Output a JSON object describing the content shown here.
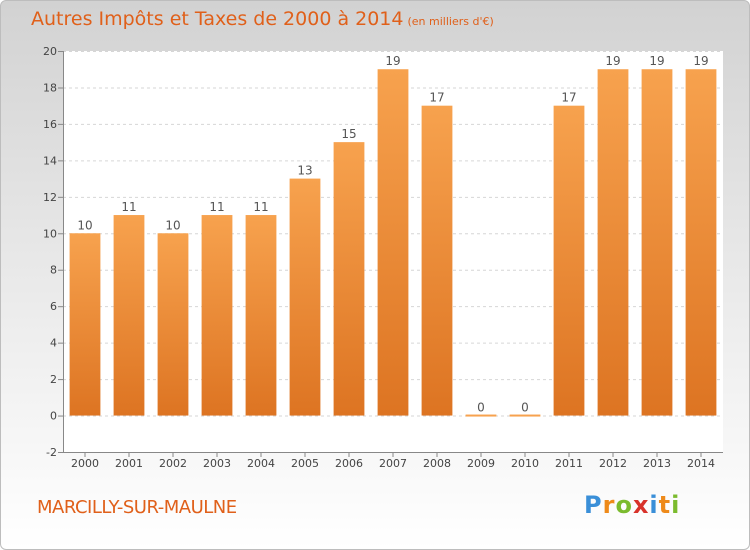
{
  "title": "Autres Impôts et Taxes de 2000 à 2014",
  "subtitle": "(en milliers d'€)",
  "commune": "MARCILLY-SUR-MAULNE",
  "logo": {
    "letters": [
      "P",
      "r",
      "o",
      "x",
      "i",
      "t",
      "i"
    ],
    "colors": [
      "#3a8fd8",
      "#ee8a1a",
      "#7bbb2e",
      "#d8322a",
      "#3a8fd8",
      "#ee8a1a",
      "#7bbb2e"
    ]
  },
  "colors": {
    "accent": "#e0601a",
    "bar_light": "#f7a24e",
    "bar_dark": "#dd7422"
  },
  "chart_data": {
    "type": "bar",
    "title": "Autres Impôts et Taxes de 2000 à 2014",
    "categories": [
      "2000",
      "2001",
      "2002",
      "2003",
      "2004",
      "2005",
      "2006",
      "2007",
      "2008",
      "2009",
      "2010",
      "2011",
      "2012",
      "2013",
      "2014"
    ],
    "values": [
      10,
      11,
      10,
      11,
      11,
      13,
      15,
      19,
      17,
      0,
      0,
      17,
      19,
      19,
      19
    ],
    "value_labels": [
      "10",
      "11",
      "10",
      "11",
      "11",
      "13",
      "15",
      "19",
      "17",
      "0",
      "0",
      "17",
      "19",
      "19",
      "19"
    ],
    "ylim": [
      -2,
      20
    ],
    "yticks": [
      -2,
      0,
      2,
      4,
      6,
      8,
      10,
      12,
      14,
      16,
      18,
      20
    ],
    "ytick_labels": [
      "-2",
      "0",
      "2",
      "4",
      "6",
      "8",
      "10",
      "12",
      "14",
      "16",
      "18",
      "20"
    ],
    "xlabel": "",
    "ylabel": "",
    "grid": true
  }
}
